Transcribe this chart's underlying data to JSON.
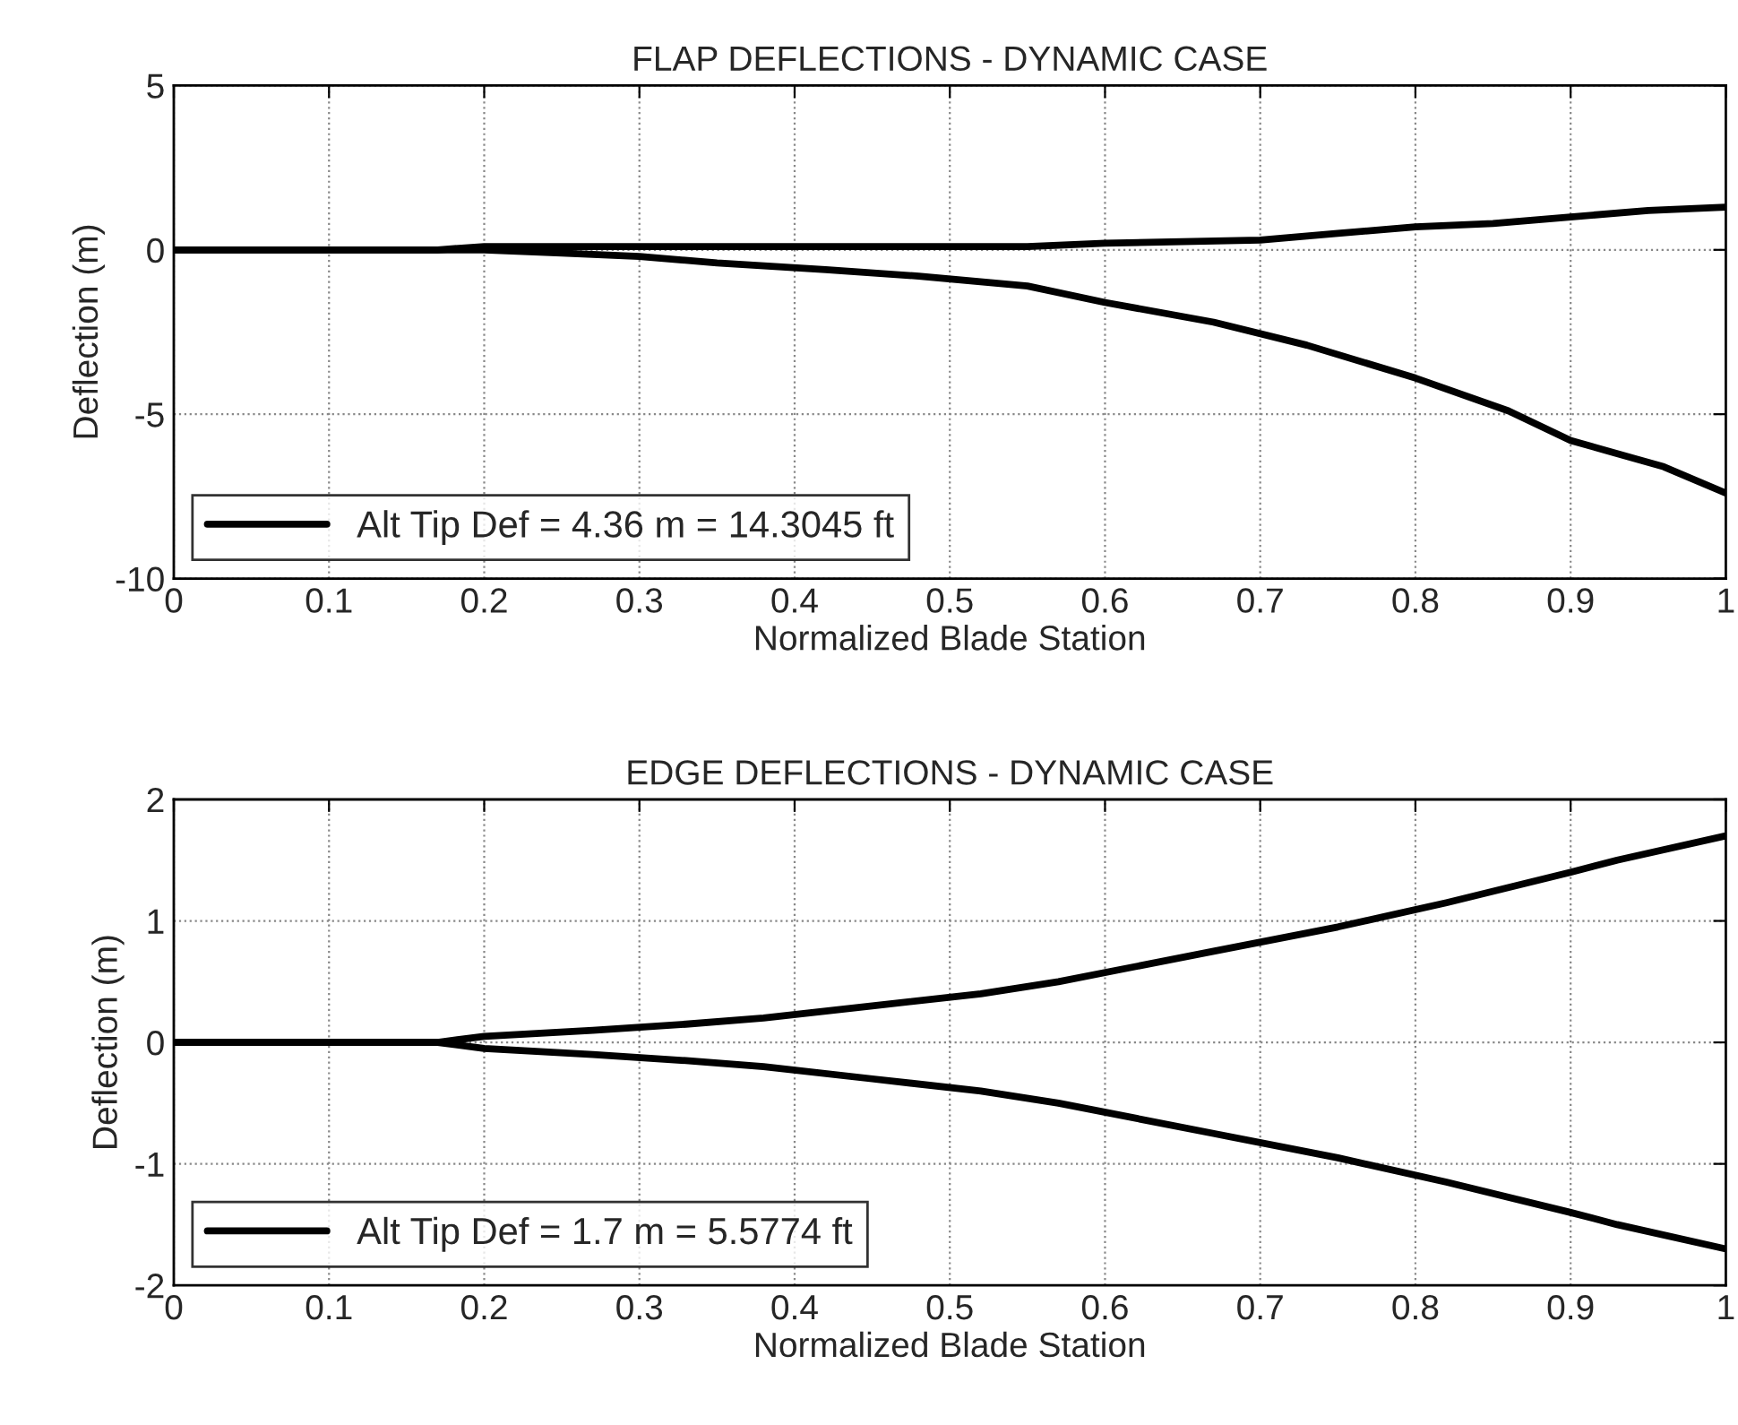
{
  "chart_data": [
    {
      "type": "line",
      "title": "FLAP DEFLECTIONS - DYNAMIC CASE",
      "xlabel": "Normalized Blade Station",
      "ylabel": "Deflection (m)",
      "xlim": [
        0,
        1
      ],
      "ylim": [
        -10,
        5
      ],
      "xticks": [
        0,
        0.1,
        0.2,
        0.3,
        0.4,
        0.5,
        0.6,
        0.7,
        0.8,
        0.9,
        1
      ],
      "yticks": [
        -10,
        -5,
        0,
        5
      ],
      "grid": true,
      "legend": "bottom left",
      "line_style": "solid",
      "series": [
        {
          "name": "Alt Tip Def = 4.36 m = 14.3045 ft",
          "color": "#000000",
          "x": [
            0,
            0.17,
            0.2,
            0.25,
            0.3,
            0.35,
            0.42,
            0.48,
            0.55,
            0.6,
            0.67,
            0.73,
            0.8,
            0.86,
            0.9,
            0.96,
            1
          ],
          "values": [
            0,
            0,
            0,
            -0.1,
            -0.2,
            -0.4,
            -0.6,
            -0.8,
            -1.1,
            -1.6,
            -2.2,
            -2.9,
            -3.9,
            -4.9,
            -5.8,
            -6.6,
            -7.4
          ]
        },
        {
          "color": "#000000",
          "x": [
            0,
            0.17,
            0.2,
            0.3,
            0.55,
            0.6,
            0.7,
            0.75,
            0.8,
            0.85,
            0.9,
            0.95,
            1
          ],
          "values": [
            0,
            0,
            0.1,
            0.1,
            0.1,
            0.2,
            0.3,
            0.5,
            0.7,
            0.8,
            1.0,
            1.2,
            1.3
          ]
        }
      ]
    },
    {
      "type": "line",
      "title": "EDGE DEFLECTIONS - DYNAMIC CASE",
      "xlabel": "Normalized Blade Station",
      "ylabel": "Deflection (m)",
      "xlim": [
        0,
        1
      ],
      "ylim": [
        -2,
        2
      ],
      "xticks": [
        0,
        0.1,
        0.2,
        0.3,
        0.4,
        0.5,
        0.6,
        0.7,
        0.8,
        0.9,
        1
      ],
      "yticks": [
        -2,
        -1,
        0,
        1,
        2
      ],
      "grid": true,
      "legend": "bottom left",
      "line_style": "solid",
      "series": [
        {
          "name": "Alt Tip Def = 1.7 m = 5.5774 ft",
          "color": "#000000",
          "x": [
            0,
            0.17,
            0.2,
            0.27,
            0.33,
            0.38,
            0.45,
            0.52,
            0.57,
            0.61,
            0.67,
            0.75,
            0.82,
            0.9,
            0.93,
            1
          ],
          "values": [
            0,
            0,
            0.05,
            0.1,
            0.15,
            0.2,
            0.3,
            0.4,
            0.5,
            0.6,
            0.75,
            0.95,
            1.15,
            1.4,
            1.5,
            1.7
          ]
        },
        {
          "color": "#000000",
          "x": [
            0,
            0.17,
            0.2,
            0.27,
            0.33,
            0.38,
            0.45,
            0.52,
            0.57,
            0.61,
            0.67,
            0.75,
            0.82,
            0.9,
            0.93,
            1
          ],
          "values": [
            0,
            0,
            -0.05,
            -0.1,
            -0.15,
            -0.2,
            -0.3,
            -0.4,
            -0.5,
            -0.6,
            -0.75,
            -0.95,
            -1.15,
            -1.4,
            -1.5,
            -1.7
          ]
        }
      ]
    }
  ]
}
